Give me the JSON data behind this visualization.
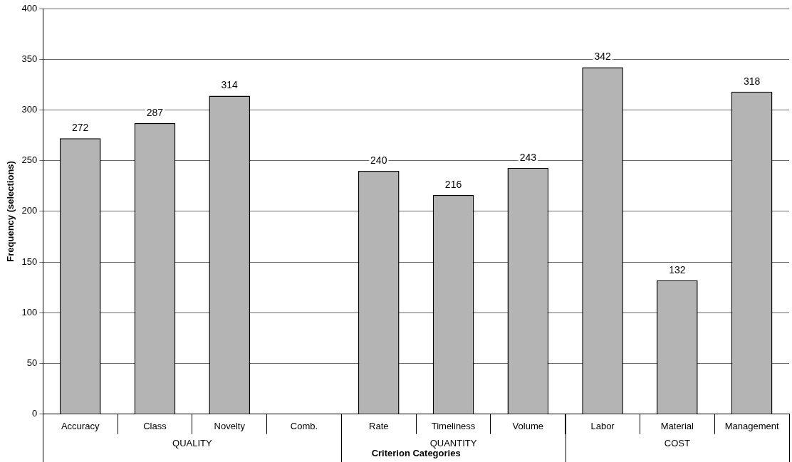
{
  "chart_data": {
    "type": "bar",
    "xlabel": "Criterion Categories",
    "ylabel": "Frequency (selections)",
    "categories": [
      "Accuracy",
      "Class",
      "Novelty",
      "Comb.",
      "Rate",
      "Timeliness",
      "Volume",
      "Labor",
      "Material",
      "Management"
    ],
    "values": [
      272,
      287,
      314,
      null,
      240,
      216,
      243,
      342,
      132,
      318
    ],
    "color": "#b4b4b4",
    "ylim": [
      0,
      400
    ],
    "yticks": [
      0,
      50,
      100,
      150,
      200,
      250,
      300,
      350,
      400
    ],
    "grid": "y",
    "data_labels": true,
    "legend": false,
    "annotations": [
      "QUALITY",
      "QUANTITY",
      "COST"
    ]
  }
}
